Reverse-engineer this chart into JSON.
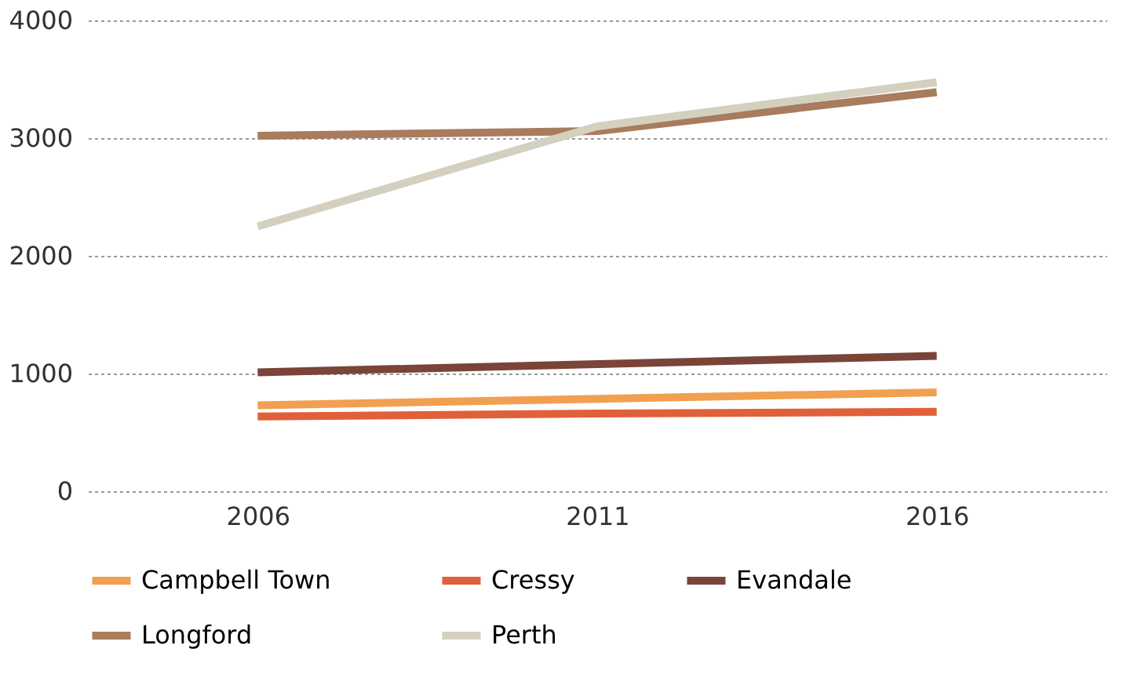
{
  "chart_data": {
    "type": "line",
    "categories": [
      "2006",
      "2011",
      "2016"
    ],
    "series": [
      {
        "name": "Campbell Town",
        "color": "#f0a050",
        "values": [
          730,
          785,
          840
        ]
      },
      {
        "name": "Cressy",
        "color": "#e0603a",
        "values": [
          635,
          660,
          675
        ]
      },
      {
        "name": "Evandale",
        "color": "#7a4438",
        "values": [
          1010,
          1080,
          1150
        ]
      },
      {
        "name": "Longford",
        "color": "#a87c5c",
        "values": [
          3020,
          3060,
          3390
        ]
      },
      {
        "name": "Perth",
        "color": "#d4d0c0",
        "values": [
          2250,
          3100,
          3475
        ]
      }
    ],
    "ylim": [
      0,
      4000
    ],
    "yticks": [
      0,
      1000,
      2000,
      3000,
      4000
    ],
    "grid": "y",
    "legend": "bottom",
    "marker": "none",
    "line_style": "solid"
  }
}
